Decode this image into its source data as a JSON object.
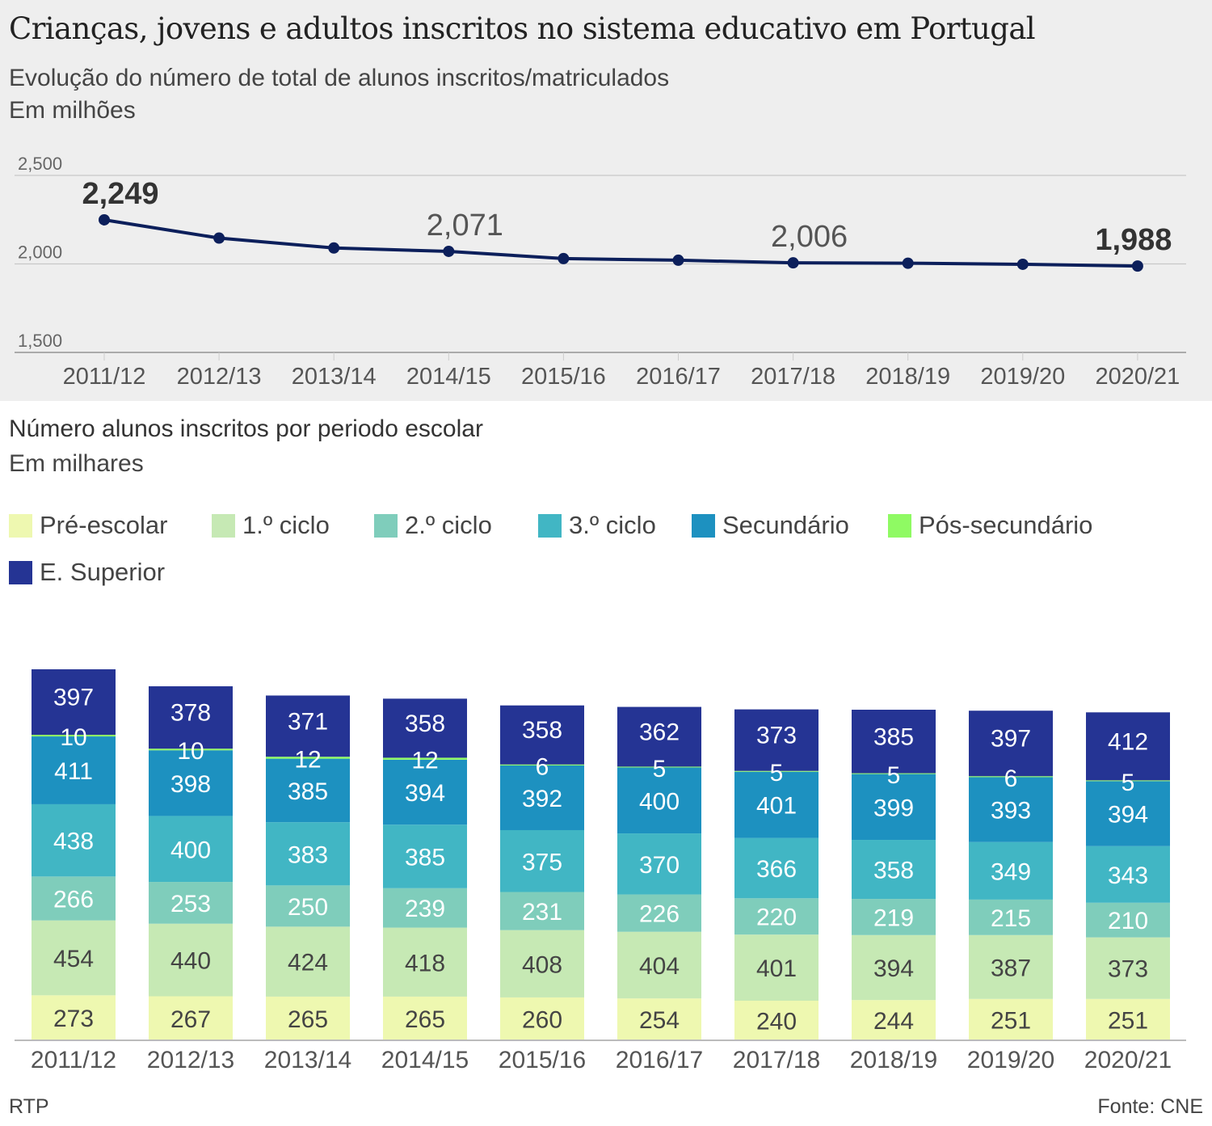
{
  "header": {
    "title": "Crianças, jovens e adultos inscritos no sistema educativo em Portugal"
  },
  "footer": {
    "credit": "RTP",
    "source": "Fonte: CNE"
  },
  "chart_data": [
    {
      "type": "line",
      "subtitle": "Evolução do número de total de alunos inscritos/matriculados",
      "unit": "Em milhões",
      "x": [
        "2011/12",
        "2012/13",
        "2013/14",
        "2014/15",
        "2015/16",
        "2016/17",
        "2017/18",
        "2018/19",
        "2019/20",
        "2020/21"
      ],
      "series": [
        {
          "name": "Total",
          "color": "#0c1f5b",
          "values": [
            2249,
            2146,
            2090,
            2071,
            2030,
            2021,
            2006,
            2004,
            1998,
            1988
          ]
        }
      ],
      "annotations": [
        {
          "index": 0,
          "label": "2,249",
          "bold": true
        },
        {
          "index": 3,
          "label": "2,071",
          "bold": false
        },
        {
          "index": 6,
          "label": "2,006",
          "bold": false
        },
        {
          "index": 9,
          "label": "1,988",
          "bold": true
        }
      ],
      "yticks": [
        {
          "value": 2500,
          "label": "2,500"
        },
        {
          "value": 2000,
          "label": "2,000"
        },
        {
          "value": 1500,
          "label": "1,500"
        }
      ],
      "ylim": [
        1500,
        2500
      ],
      "grid": true,
      "xlabel": "",
      "ylabel": ""
    },
    {
      "type": "bar",
      "stacked": true,
      "subtitle": "Número alunos inscritos por periodo escolar",
      "unit": "Em milhares",
      "legend_position": "top-left",
      "categories": [
        "2011/12",
        "2012/13",
        "2013/14",
        "2014/15",
        "2015/16",
        "2016/17",
        "2017/18",
        "2018/19",
        "2019/20",
        "2020/21"
      ],
      "series": [
        {
          "name": "Pré-escolar",
          "color": "#eef8b0",
          "label_color": "#444444",
          "values": [
            273,
            267,
            265,
            265,
            260,
            254,
            240,
            244,
            251,
            251
          ]
        },
        {
          "name": "1.º ciclo",
          "color": "#c6e9b4",
          "label_color": "#444444",
          "values": [
            454,
            440,
            424,
            418,
            408,
            404,
            401,
            394,
            387,
            373
          ]
        },
        {
          "name": "2.º ciclo",
          "color": "#7fcdbb",
          "label_color": "#ffffff",
          "values": [
            266,
            253,
            250,
            239,
            231,
            226,
            220,
            219,
            215,
            210
          ]
        },
        {
          "name": "3.º ciclo",
          "color": "#41b6c4",
          "label_color": "#ffffff",
          "values": [
            438,
            400,
            383,
            385,
            375,
            370,
            366,
            358,
            349,
            343
          ]
        },
        {
          "name": "Secundário",
          "color": "#1d91c0",
          "label_color": "#ffffff",
          "values": [
            411,
            398,
            385,
            394,
            392,
            400,
            401,
            399,
            393,
            394
          ]
        },
        {
          "name": "Pós-secundário",
          "color": "#8ffa63",
          "label_color": "#ffffff",
          "values": [
            10,
            10,
            12,
            12,
            6,
            5,
            5,
            5,
            6,
            5
          ]
        },
        {
          "name": "E. Superior",
          "color": "#253494",
          "label_color": "#ffffff",
          "values": [
            397,
            378,
            371,
            358,
            358,
            362,
            373,
            385,
            397,
            412
          ]
        }
      ],
      "xlabel": "",
      "ylabel": "",
      "grid": false
    }
  ]
}
